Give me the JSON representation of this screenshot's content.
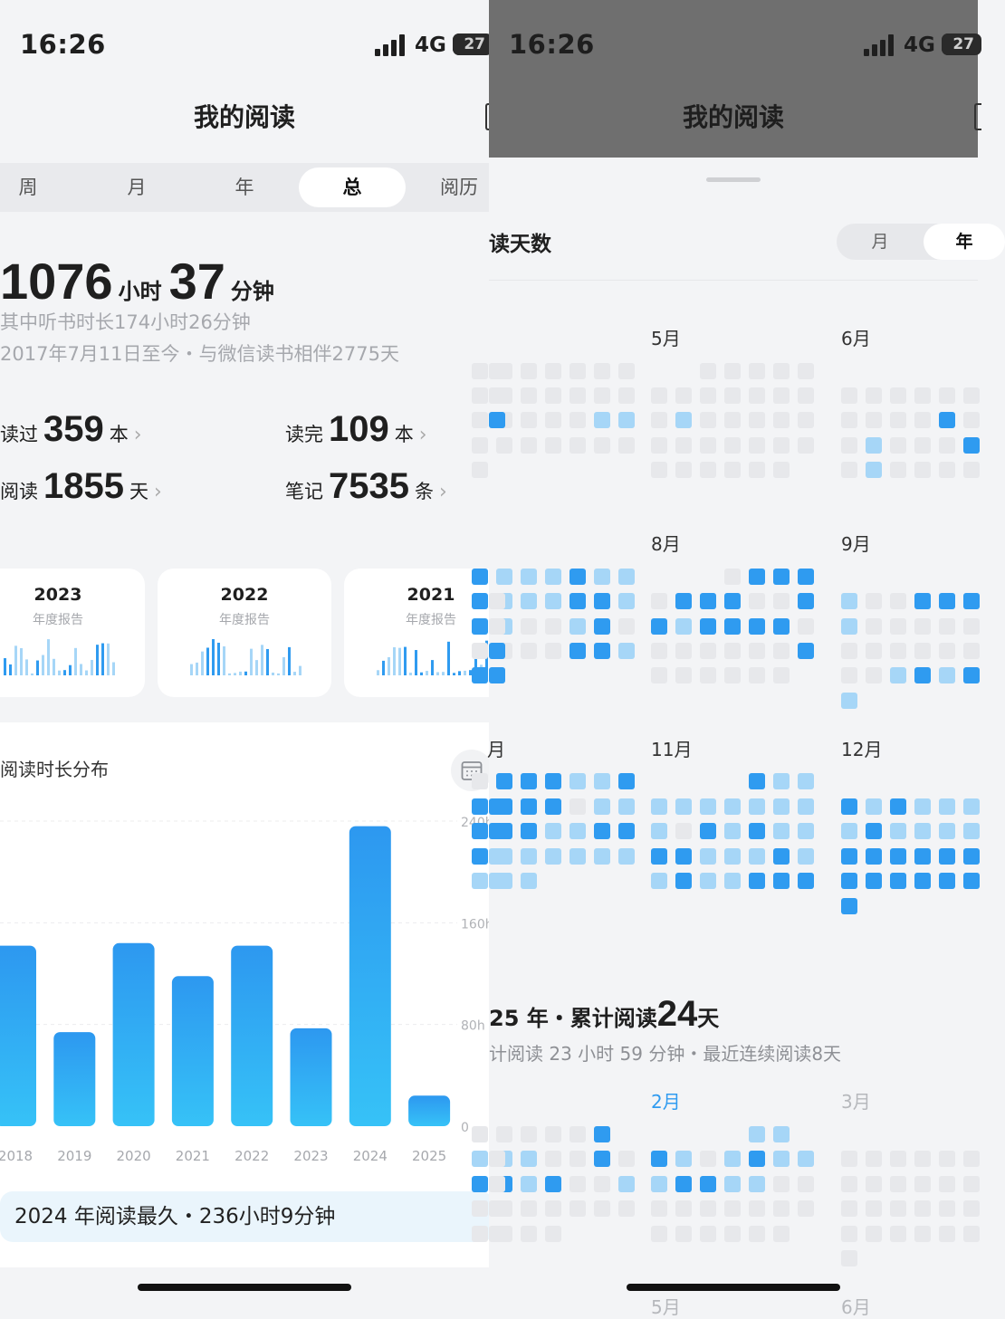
{
  "status_bar": {
    "time": "16:26",
    "network": "4G",
    "battery": "27"
  },
  "left": {
    "nav_title": "我的阅读",
    "tabs": [
      "周",
      "月",
      "年",
      "总",
      "阅历"
    ],
    "active_tab": "总",
    "total": {
      "hours": "1076",
      "hours_unit": "小时",
      "minutes": "37",
      "minutes_unit": "分钟"
    },
    "listen_text": "其中听书时长174小时26分钟",
    "since_text": "2017年7月11日至今・与微信读书相伴2775天",
    "stats": [
      {
        "prefix": "读过",
        "value": "359",
        "unit": "本"
      },
      {
        "prefix": "读完",
        "value": "109",
        "unit": "本"
      },
      {
        "prefix": "阅读",
        "value": "1855",
        "unit": "天"
      },
      {
        "prefix": "笔记",
        "value": "7535",
        "unit": "条"
      }
    ],
    "report_cards": [
      {
        "year": "2023",
        "label": "年度报告"
      },
      {
        "year": "2022",
        "label": "年度报告"
      },
      {
        "year": "2021",
        "label": "年度报告"
      }
    ],
    "chart_title": "阅读时长分布",
    "highlight": "2024 年阅读最久・236小时9分钟"
  },
  "chart_data": {
    "type": "bar",
    "title": "阅读时长分布",
    "categories": [
      "2018",
      "2019",
      "2020",
      "2021",
      "2022",
      "2023",
      "2024",
      "2025"
    ],
    "values": [
      142,
      74,
      144,
      118,
      142,
      77,
      236,
      24
    ],
    "ylabel": "",
    "ylim": [
      0,
      240
    ],
    "yticks": [
      "0",
      "80h",
      "160h",
      "240h"
    ],
    "grid": true,
    "legend": "none"
  },
  "right": {
    "nav_title": "我的阅读",
    "sheet_title": "读天数",
    "segments": [
      "月",
      "年"
    ],
    "active_segment": "年",
    "months_top": [
      {
        "label": "5月"
      },
      {
        "label": "6月"
      },
      {
        "label": "8月"
      },
      {
        "label": "9月"
      },
      {
        "label": "月"
      },
      {
        "label": "11月"
      },
      {
        "label": "12月"
      }
    ],
    "year_summary": {
      "prefix": "25 年・累计阅读",
      "days": "24",
      "unit": "天"
    },
    "year_sub": "计阅读 23 小时 59 分钟・最近连续阅读8天",
    "months_bottom": [
      {
        "label": "2月"
      },
      {
        "label": "3月"
      },
      {
        "label": "5月"
      },
      {
        "label": "6月"
      }
    ]
  },
  "colors": {
    "accent": "#2f9bf0",
    "light": "#a6d6f7",
    "empty": "#e7e8eb",
    "bar_top": "#2d98f0",
    "bar_bottom": "#36c2f7"
  }
}
